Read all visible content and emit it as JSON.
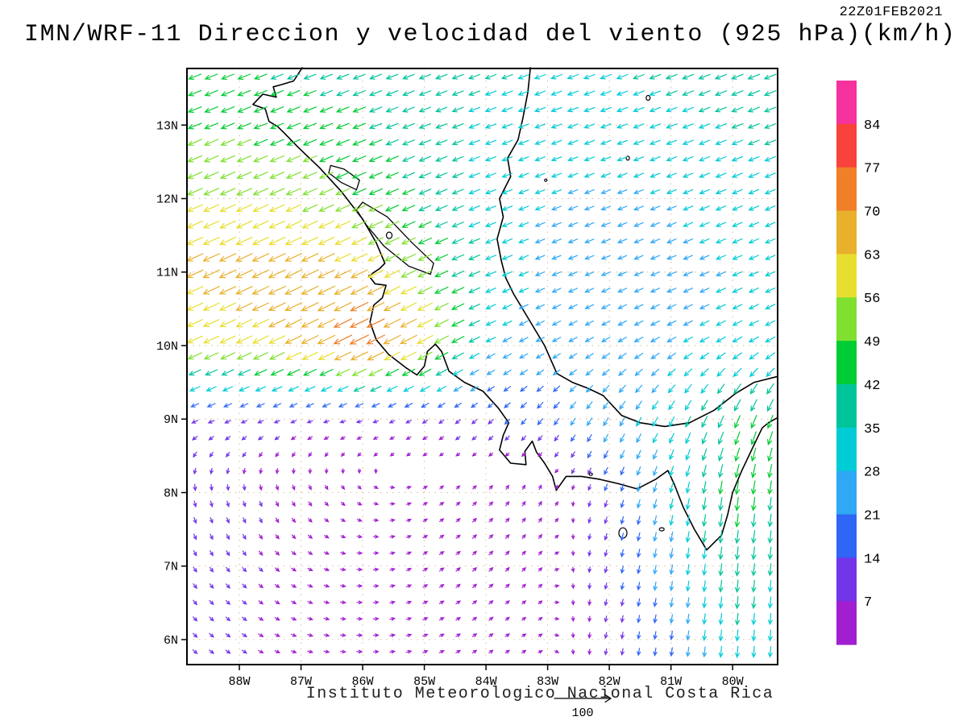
{
  "header": {
    "title": "IMN/WRF-11 Direccion y velocidad del viento (925 hPa)(km/h)",
    "timestamp": "22Z01FEB2021"
  },
  "footer": {
    "credit": "Instituto Meteorologico Nacional Costa Rica",
    "reference_label": "100"
  },
  "chart_data": {
    "type": "vector_field",
    "variable": "wind direction and speed",
    "model": "IMN/WRF-11",
    "level": "925 hPa",
    "units": "km/h",
    "valid_time": "22Z01FEB2021",
    "reference_vector": 100,
    "x_axis": {
      "tick_labels": [
        "88W",
        "87W",
        "86W",
        "85W",
        "84W",
        "83W",
        "82W",
        "81W",
        "80W"
      ],
      "lon_values": [
        -88,
        -87,
        -86,
        -85,
        -84,
        -83,
        -82,
        -81,
        -80
      ],
      "range": [
        -88.85,
        -79.27
      ]
    },
    "y_axis": {
      "tick_labels": [
        "13N",
        "12N",
        "11N",
        "10N",
        "9N",
        "8N",
        "7N",
        "6N"
      ],
      "lat_values": [
        13,
        12,
        11,
        10,
        9,
        8,
        7,
        6
      ],
      "range": [
        5.66,
        13.77
      ]
    },
    "colorbar": {
      "levels": [
        7,
        14,
        21,
        28,
        35,
        42,
        49,
        56,
        63,
        70,
        77,
        84
      ],
      "colors": [
        "#a21fd1",
        "#7335e8",
        "#2f66f5",
        "#2fa8f5",
        "#00ccd6",
        "#00c49a",
        "#00cc33",
        "#7fe030",
        "#e8de30",
        "#e9b02b",
        "#f07f28",
        "#f9423c",
        "#f5329e"
      ],
      "orientation": "vertical-right"
    },
    "grid": {
      "lons": [
        -89,
        -88,
        -87,
        -86,
        -85,
        -84,
        -83,
        -82,
        -81,
        -80,
        -79
      ],
      "lats": [
        14,
        13,
        12,
        11,
        10,
        9,
        8,
        7,
        6
      ],
      "uv": [
        [
          [
            -38,
            -15
          ],
          [
            -38,
            -15
          ],
          [
            -36,
            -14
          ],
          [
            -36,
            -14
          ],
          [
            -35,
            -13
          ],
          [
            -34,
            -13
          ],
          [
            -34,
            -13
          ],
          [
            -34,
            -13
          ],
          [
            -35,
            -14
          ],
          [
            -37,
            -15
          ],
          [
            -39,
            -16
          ]
        ],
        [
          [
            -44,
            -18
          ],
          [
            -44,
            -18
          ],
          [
            -42,
            -17
          ],
          [
            -40,
            -16
          ],
          [
            -35,
            -14
          ],
          [
            -31,
            -12
          ],
          [
            -29,
            -11
          ],
          [
            -29,
            -11
          ],
          [
            -31,
            -12
          ],
          [
            -33,
            -13
          ],
          [
            -35,
            -14
          ]
        ],
        [
          [
            -52,
            -23
          ],
          [
            -52,
            -23
          ],
          [
            -50,
            -22
          ],
          [
            -45,
            -20
          ],
          [
            -37,
            -16
          ],
          [
            -30,
            -12
          ],
          [
            -26,
            -10
          ],
          [
            -25,
            -10
          ],
          [
            -26,
            -11
          ],
          [
            -28,
            -12
          ],
          [
            -30,
            -13
          ]
        ],
        [
          [
            -58,
            -27
          ],
          [
            -60,
            -28
          ],
          [
            -61,
            -29
          ],
          [
            -58,
            -28
          ],
          [
            -47,
            -22
          ],
          [
            -31,
            -13
          ],
          [
            -24,
            -10
          ],
          [
            -22,
            -9
          ],
          [
            -24,
            -10
          ],
          [
            -26,
            -11
          ],
          [
            -28,
            -12
          ]
        ],
        [
          [
            -50,
            -23
          ],
          [
            -54,
            -25
          ],
          [
            -58,
            -28
          ],
          [
            -70,
            -34
          ],
          [
            -56,
            -30
          ],
          [
            -26,
            -13
          ],
          [
            -20,
            -11
          ],
          [
            -22,
            -13
          ],
          [
            -24,
            -14
          ],
          [
            -26,
            -15
          ],
          [
            -28,
            -15
          ]
        ],
        [
          [
            -12,
            -5
          ],
          [
            -10,
            -4
          ],
          [
            -8,
            -3
          ],
          [
            -7,
            -2
          ],
          [
            -8,
            -5
          ],
          [
            -10,
            -9
          ],
          [
            -12,
            -15
          ],
          [
            -13,
            -22
          ],
          [
            -15,
            -28
          ],
          [
            -18,
            -40
          ],
          [
            -16,
            -44
          ]
        ],
        [
          [
            2,
            -11
          ],
          [
            2,
            -8
          ],
          [
            3,
            -5
          ],
          [
            3,
            -2
          ],
          [
            3,
            2
          ],
          [
            4,
            4
          ],
          [
            3,
            6
          ],
          [
            -5,
            -14
          ],
          [
            -7,
            -28
          ],
          [
            -6,
            -45
          ],
          [
            -5,
            -40
          ]
        ],
        [
          [
            5,
            -8
          ],
          [
            5,
            -6
          ],
          [
            5,
            -3
          ],
          [
            5,
            0
          ],
          [
            5,
            3
          ],
          [
            5,
            5
          ],
          [
            3,
            3
          ],
          [
            -3,
            -12
          ],
          [
            -4,
            -26
          ],
          [
            -4,
            -40
          ],
          [
            -3,
            -34
          ]
        ],
        [
          [
            6,
            -6
          ],
          [
            6,
            -4
          ],
          [
            6,
            -2
          ],
          [
            6,
            0
          ],
          [
            5,
            2
          ],
          [
            4,
            3
          ],
          [
            2,
            1
          ],
          [
            -2,
            -10
          ],
          [
            -3,
            -20
          ],
          [
            -3,
            -34
          ],
          [
            -2,
            -28
          ]
        ]
      ]
    },
    "map": {
      "coast_pacific": [
        [
          -86.98,
          13.78
        ],
        [
          -87.12,
          13.6
        ],
        [
          -87.32,
          13.55
        ],
        [
          -87.45,
          13.52
        ],
        [
          -87.4,
          13.38
        ],
        [
          -87.62,
          13.42
        ],
        [
          -87.78,
          13.28
        ],
        [
          -87.58,
          13.22
        ],
        [
          -87.52,
          13.05
        ],
        [
          -87.38,
          12.98
        ],
        [
          -87.28,
          12.9
        ],
        [
          -87.05,
          12.7
        ],
        [
          -86.7,
          12.42
        ],
        [
          -86.35,
          12.1
        ],
        [
          -86.0,
          11.72
        ],
        [
          -85.78,
          11.4
        ],
        [
          -85.64,
          11.12
        ],
        [
          -85.72,
          11.05
        ],
        [
          -85.9,
          10.95
        ],
        [
          -85.8,
          10.84
        ],
        [
          -85.62,
          10.82
        ],
        [
          -85.68,
          10.65
        ],
        [
          -85.82,
          10.55
        ],
        [
          -85.88,
          10.32
        ],
        [
          -85.78,
          10.08
        ],
        [
          -85.58,
          9.88
        ],
        [
          -85.3,
          9.7
        ],
        [
          -85.12,
          9.6
        ],
        [
          -85.0,
          9.72
        ],
        [
          -84.95,
          9.92
        ],
        [
          -84.82,
          10.02
        ],
        [
          -84.72,
          9.92
        ],
        [
          -84.6,
          9.65
        ],
        [
          -84.35,
          9.5
        ],
        [
          -84.05,
          9.38
        ],
        [
          -83.8,
          9.15
        ],
        [
          -83.63,
          8.95
        ],
        [
          -83.72,
          8.78
        ],
        [
          -83.78,
          8.58
        ],
        [
          -83.6,
          8.4
        ],
        [
          -83.35,
          8.38
        ],
        [
          -83.37,
          8.56
        ],
        [
          -83.25,
          8.7
        ],
        [
          -83.18,
          8.55
        ],
        [
          -83.05,
          8.4
        ],
        [
          -82.92,
          8.22
        ],
        [
          -82.86,
          8.03
        ],
        [
          -82.7,
          8.22
        ],
        [
          -82.45,
          8.22
        ],
        [
          -82.15,
          8.18
        ],
        [
          -81.85,
          8.12
        ],
        [
          -81.55,
          8.05
        ],
        [
          -81.25,
          8.18
        ],
        [
          -81.05,
          8.3
        ],
        [
          -80.95,
          8.12
        ],
        [
          -80.8,
          7.8
        ],
        [
          -80.62,
          7.5
        ],
        [
          -80.42,
          7.22
        ],
        [
          -80.18,
          7.42
        ],
        [
          -80.08,
          7.7
        ],
        [
          -80.0,
          8.0
        ],
        [
          -79.85,
          8.3
        ],
        [
          -79.68,
          8.6
        ],
        [
          -79.52,
          8.88
        ],
        [
          -79.42,
          8.95
        ],
        [
          -79.27,
          9.02
        ]
      ],
      "coast_caribbean": [
        [
          -79.27,
          9.58
        ],
        [
          -79.65,
          9.5
        ],
        [
          -79.95,
          9.35
        ],
        [
          -80.3,
          9.12
        ],
        [
          -80.7,
          8.95
        ],
        [
          -81.1,
          8.9
        ],
        [
          -81.5,
          8.95
        ],
        [
          -81.8,
          9.05
        ],
        [
          -82.1,
          9.32
        ],
        [
          -82.35,
          9.42
        ],
        [
          -82.6,
          9.5
        ],
        [
          -82.85,
          9.62
        ],
        [
          -83.05,
          10.0
        ],
        [
          -83.3,
          10.35
        ],
        [
          -83.55,
          10.7
        ],
        [
          -83.68,
          10.92
        ],
        [
          -83.75,
          11.15
        ],
        [
          -83.82,
          11.45
        ],
        [
          -83.72,
          11.75
        ],
        [
          -83.78,
          12.0
        ],
        [
          -83.6,
          12.3
        ],
        [
          -83.65,
          12.55
        ],
        [
          -83.48,
          12.8
        ],
        [
          -83.4,
          13.1
        ],
        [
          -83.32,
          13.45
        ],
        [
          -83.28,
          13.78
        ]
      ],
      "lakes": [
        [
          [
            -86.0,
            11.95
          ],
          [
            -85.6,
            11.75
          ],
          [
            -85.2,
            11.4
          ],
          [
            -84.85,
            11.12
          ],
          [
            -84.9,
            10.97
          ],
          [
            -85.25,
            11.08
          ],
          [
            -85.65,
            11.35
          ],
          [
            -85.95,
            11.65
          ],
          [
            -86.1,
            11.85
          ]
        ],
        [
          [
            -86.52,
            12.45
          ],
          [
            -86.3,
            12.4
          ],
          [
            -86.05,
            12.25
          ],
          [
            -86.1,
            12.12
          ],
          [
            -86.35,
            12.22
          ],
          [
            -86.55,
            12.35
          ]
        ]
      ],
      "islands": [
        [
          -81.37,
          13.37,
          2.5,
          3
        ],
        [
          -81.7,
          12.55,
          2,
          2.5
        ],
        [
          -83.03,
          12.25,
          1.5,
          1.5
        ],
        [
          -85.57,
          11.5,
          3.5,
          4
        ],
        [
          -82.3,
          8.25,
          2,
          1.5
        ],
        [
          -81.78,
          7.45,
          5,
          6.5
        ],
        [
          -81.15,
          7.5,
          3,
          2
        ]
      ]
    }
  }
}
